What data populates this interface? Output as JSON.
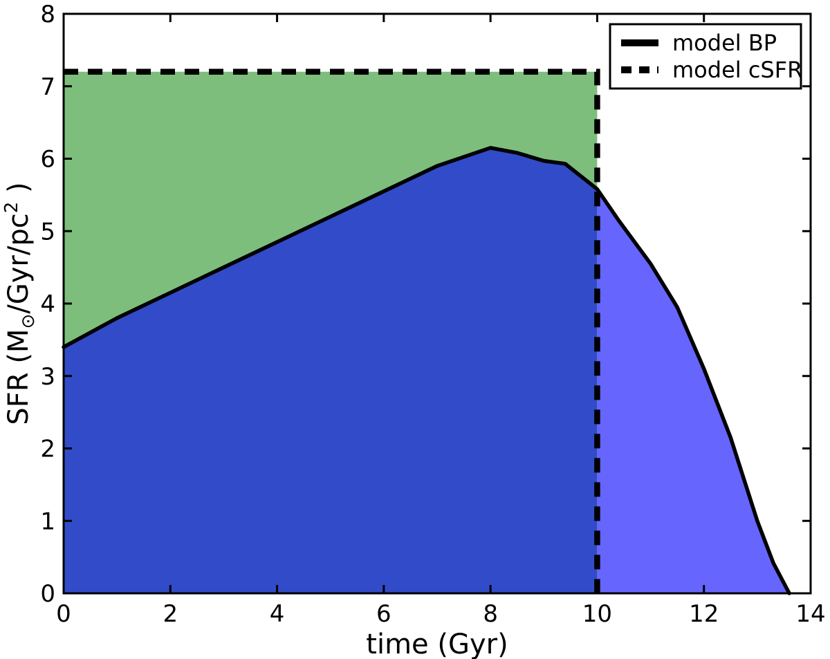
{
  "chart_data": {
    "type": "area",
    "title": "",
    "xlabel": "time (Gyr)",
    "ylabel": {
      "prefix": "SFR (M",
      "subscript": "⊙",
      "middle": "/Gyr/pc",
      "superscript": "2",
      "suffix": " )"
    },
    "xlim": [
      0,
      14
    ],
    "ylim": [
      0,
      8
    ],
    "xticks": [
      0,
      2,
      4,
      6,
      8,
      10,
      12,
      14
    ],
    "yticks": [
      0,
      1,
      2,
      3,
      4,
      5,
      6,
      7,
      8
    ],
    "grid": false,
    "series": [
      {
        "name": "model BP",
        "style": "solid",
        "line_color": "#000000",
        "line_width": 5.5,
        "points": [
          [
            0,
            3.4
          ],
          [
            1,
            3.8
          ],
          [
            2,
            4.15
          ],
          [
            3,
            4.5
          ],
          [
            4,
            4.85
          ],
          [
            5,
            5.2
          ],
          [
            6,
            5.55
          ],
          [
            7,
            5.9
          ],
          [
            8,
            6.15
          ],
          [
            8.5,
            6.08
          ],
          [
            9,
            5.97
          ],
          [
            9.4,
            5.93
          ],
          [
            10,
            5.58
          ],
          [
            10.4,
            5.15
          ],
          [
            11,
            4.55
          ],
          [
            11.5,
            3.95
          ],
          [
            12,
            3.1
          ],
          [
            12.5,
            2.15
          ],
          [
            13,
            1.0
          ],
          [
            13.3,
            0.42
          ],
          [
            13.6,
            0
          ]
        ]
      },
      {
        "name": "model cSFR",
        "style": "dashed",
        "line_color": "#000000",
        "line_width": 8.5,
        "constant_level": 7.2,
        "cutoff_time": 10,
        "points": [
          [
            0,
            7.2
          ],
          [
            10,
            7.2
          ],
          [
            10,
            0
          ]
        ]
      }
    ],
    "fills": [
      {
        "name": "csfr-above-bp",
        "description": "between BP curve and cSFR level, t 0-10",
        "color": "#7dbe7d"
      },
      {
        "name": "bp-overlap-csfr",
        "description": "under BP curve, t 0-10",
        "color": "#324bc8"
      },
      {
        "name": "bp-only-tail",
        "description": "under BP curve, t 10-13.6",
        "color": "#6666ff"
      }
    ],
    "legend": {
      "position": "upper right",
      "entries": [
        {
          "label": "model BP",
          "style": "solid"
        },
        {
          "label": "model cSFR",
          "style": "dashed"
        }
      ]
    },
    "axis_color": "#000000",
    "background_color": "#ffffff"
  },
  "layout_note_values": {
    "bp_start_value": 3.4,
    "bp_peak_value": 6.15,
    "bp_peak_time": 8,
    "bp_end_time": 13.6,
    "csfr_level": 7.2,
    "csfr_cutoff": 10
  }
}
